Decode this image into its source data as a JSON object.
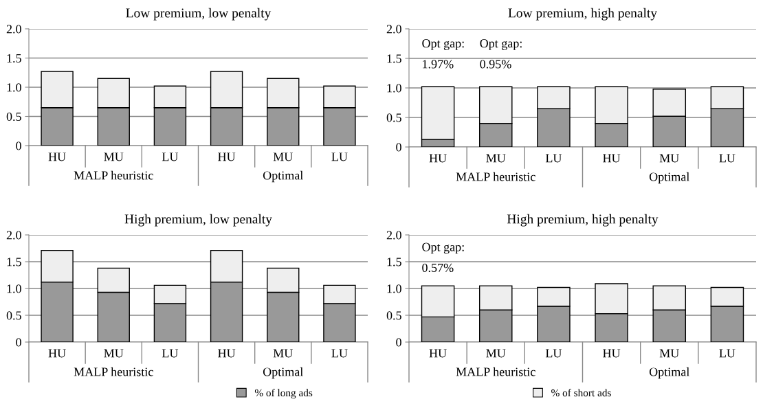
{
  "chart_data": [
    {
      "type": "bar",
      "title": "Low premium, low penalty",
      "stacked": true,
      "grid": "y",
      "categories": [
        "HU",
        "MU",
        "LU",
        "HU",
        "MU",
        "LU"
      ],
      "series": [
        {
          "color": "#999999",
          "values": [
            0.65,
            0.65,
            0.65,
            0.65,
            0.65,
            0.65
          ]
        },
        {
          "color": "#eeeeee",
          "values": [
            0.62,
            0.5,
            0.37,
            0.62,
            0.5,
            0.37
          ]
        }
      ],
      "ylim": [
        0,
        2.0
      ],
      "yticks": [
        0,
        {
          "value": 0.5,
          "label": "0.5"
        },
        {
          "value": 1.0,
          "label": "1.0"
        },
        {
          "value": 1.5,
          "label": "1.5"
        },
        {
          "value": 2.0,
          "label": "2.0"
        }
      ],
      "annotations": [
        "MALP heuristic",
        "Optimal"
      ]
    },
    {
      "type": "bar",
      "title": "Low premium, high penalty",
      "stacked": true,
      "grid": "y",
      "categories": [
        "HU",
        "MU",
        "LU",
        "HU",
        "MU",
        "LU"
      ],
      "series": [
        {
          "color": "#999999",
          "values": [
            0.13,
            0.4,
            0.65,
            0.4,
            0.52,
            0.65
          ]
        },
        {
          "color": "#eeeeee",
          "values": [
            0.89,
            0.62,
            0.37,
            0.62,
            0.46,
            0.37
          ]
        }
      ],
      "ylim": [
        0,
        2.0
      ],
      "yticks": [
        0,
        {
          "value": 0.5,
          "label": "0.5"
        },
        {
          "value": 1.0,
          "label": "1.0"
        },
        {
          "value": 1.5,
          "label": "1.5"
        },
        {
          "value": 2.0,
          "label": "2.0"
        }
      ],
      "annotations": [
        "MALP heuristic",
        "Optimal",
        "Opt gap:\n\n1.97%",
        "Opt gap:\n\n0.95%"
      ]
    },
    {
      "type": "bar",
      "title": "High premium, low penalty",
      "stacked": true,
      "grid": "y",
      "categories": [
        "HU",
        "MU",
        "LU",
        "HU",
        "MU",
        "LU"
      ],
      "series": [
        {
          "color": "#999999",
          "values": [
            1.12,
            0.93,
            0.72,
            1.12,
            0.93,
            0.72
          ]
        },
        {
          "color": "#eeeeee",
          "values": [
            0.59,
            0.45,
            0.34,
            0.59,
            0.45,
            0.34
          ]
        }
      ],
      "ylim": [
        0,
        2.0
      ],
      "yticks": [
        0,
        {
          "value": 0.5,
          "label": "0.5"
        },
        {
          "value": 1.0,
          "label": "1.0"
        },
        {
          "value": 1.5,
          "label": "1.5"
        },
        {
          "value": 2.0,
          "label": "2.0"
        }
      ],
      "annotations": [
        "MALP heuristic",
        "Optimal"
      ]
    },
    {
      "type": "bar",
      "title": "High premium, high penalty",
      "stacked": true,
      "grid": "y",
      "legend": "bottom",
      "categories": [
        "HU",
        "MU",
        "LU",
        "HU",
        "MU",
        "LU"
      ],
      "series": [
        {
          "name": "% of long ads",
          "color": "#999999",
          "values": [
            0.47,
            0.6,
            0.67,
            0.53,
            0.6,
            0.67
          ]
        },
        {
          "name": "% of short ads",
          "color": "#eeeeee",
          "values": [
            0.58,
            0.45,
            0.35,
            0.56,
            0.45,
            0.35
          ]
        }
      ],
      "ylim": [
        0,
        2.0
      ],
      "yticks": [
        0,
        {
          "value": 0.5,
          "label": "0.5"
        },
        {
          "value": 1.0,
          "label": "1.0"
        },
        {
          "value": 1.5,
          "label": "1.5"
        },
        {
          "value": 2.0,
          "label": "2.0"
        }
      ],
      "annotations": [
        "MALP heuristic",
        "Optimal",
        "Opt gap:\n\n0.57%"
      ]
    }
  ]
}
